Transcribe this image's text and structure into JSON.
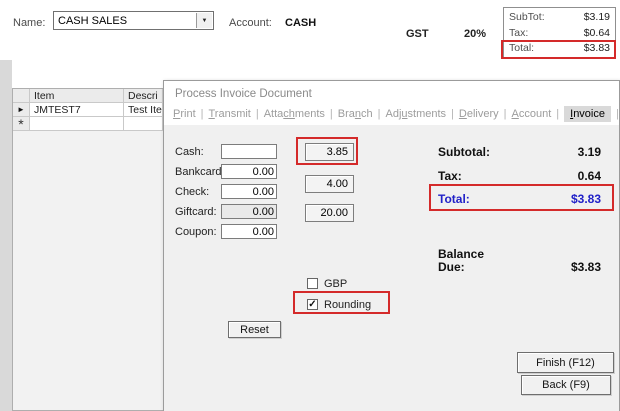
{
  "colors": {
    "highlight_red": "#d42a2a",
    "total_blue": "#2121c8"
  },
  "top_bar": {
    "name_label": "Name:",
    "name_value": "CASH SALES",
    "dropdown_icon": "▼",
    "account_label": "Account:",
    "account_value": "CASH",
    "tax_name": "GST",
    "tax_rate": "20%",
    "summary": {
      "rows": [
        {
          "label": "SubTot:",
          "value": "$3.19"
        },
        {
          "label": "Tax:",
          "value": "$0.64"
        },
        {
          "label": "Total:",
          "value": "$3.83"
        }
      ]
    }
  },
  "grid": {
    "columns": {
      "item": "Item",
      "description": "Descri"
    },
    "rows": [
      {
        "marker": "►",
        "item": "JMTEST7",
        "description": "Test Ite"
      },
      {
        "marker": "*",
        "item": "",
        "description": ""
      }
    ]
  },
  "dialog": {
    "title": "Process Invoice Document",
    "tab_separator": "|",
    "tabs": [
      {
        "pre": "",
        "u": "P",
        "post": "rint"
      },
      {
        "pre": "",
        "u": "T",
        "post": "ransmit"
      },
      {
        "pre": "Atta",
        "u": "ch",
        "post": "ments"
      },
      {
        "pre": "Bra",
        "u": "n",
        "post": "ch"
      },
      {
        "pre": "Ad",
        "u": "ju",
        "post": "stments"
      },
      {
        "pre": "",
        "u": "D",
        "post": "elivery"
      },
      {
        "pre": "",
        "u": "A",
        "post": "ccount"
      },
      {
        "pre": "",
        "u": "I",
        "post": "nvoice"
      }
    ],
    "active_tab": "Invoice",
    "payments": [
      {
        "label": "Cash:",
        "value": ""
      },
      {
        "label": "Bankcard:",
        "value": "0.00"
      },
      {
        "label": "Check:",
        "value": "0.00"
      },
      {
        "label": "Giftcard:",
        "value": "0.00"
      },
      {
        "label": "Coupon:",
        "value": "0.00"
      }
    ],
    "quick_amounts": [
      {
        "label": "3.85"
      },
      {
        "label": "4.00"
      },
      {
        "label": "20.00"
      }
    ],
    "totals": {
      "subtotal_label": "Subtotal:",
      "subtotal_value": "3.19",
      "tax_label": "Tax:",
      "tax_value": "0.64",
      "total_label": "Total:",
      "total_value": "$3.83"
    },
    "balance": {
      "label_line1": "Balance",
      "label_line2": "Due:",
      "value": "$3.83"
    },
    "checkboxes": [
      {
        "label": "GBP",
        "checked": false,
        "mark": ""
      },
      {
        "label": "Rounding",
        "checked": true,
        "mark": "✓"
      }
    ],
    "reset_label": "Reset",
    "finish_label": "Finish (F12)",
    "back_label": "Back (F9)"
  }
}
